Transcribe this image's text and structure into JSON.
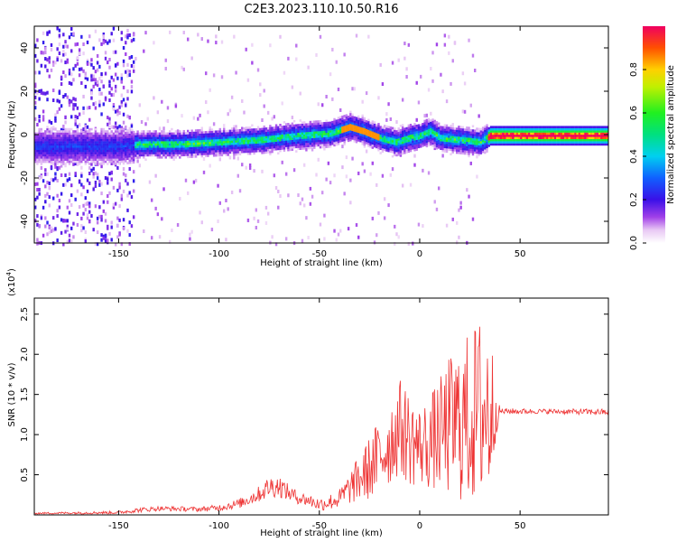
{
  "title": "C2E3.2023.110.10.50.R16",
  "colors": {
    "snr_line": "#ee3333",
    "axis": "#000000"
  },
  "chart_data": [
    {
      "type": "heatmap",
      "name_hint": "spectrogram",
      "xlabel": "Height of straight line (km)",
      "ylabel": "Frequency (Hz)",
      "xlim": [
        -192,
        94
      ],
      "ylim": [
        -50,
        50
      ],
      "x_ticks": [
        "-150",
        "-100",
        "-50",
        "0",
        "50"
      ],
      "y_ticks": [
        "40",
        "20",
        "0",
        "-20",
        "-40"
      ],
      "colorbar": {
        "label": "Normalized spectral amplitude",
        "range": [
          0.0,
          1.0
        ],
        "ticks": [
          "0.0",
          "0.2",
          "0.4",
          "0.6",
          "0.8"
        ],
        "colormap": "rainbow (white-violet-blue-cyan-green-yellow-red)"
      },
      "ridge_frequency_hz": {
        "x": [
          -150,
          -140,
          -120,
          -100,
          -80,
          -60,
          -45,
          -35,
          -28,
          -20,
          -12,
          -5,
          0,
          5,
          10,
          20,
          30,
          35,
          60,
          90
        ],
        "y": [
          -5,
          -4,
          -4,
          -3,
          -2,
          0,
          1,
          4,
          2,
          -1,
          -3,
          -1,
          0,
          2,
          -1,
          -2,
          -3,
          0,
          0,
          0
        ]
      }
    },
    {
      "type": "line",
      "name_hint": "snr",
      "xlabel": "Height of straight line (km)",
      "ylabel": "SNR (10 * v/v)",
      "y_multiplier": "(x10",
      "y_multiplier_exp": "4",
      "y_multiplier_close": ")",
      "xlim": [
        -192,
        94
      ],
      "ylim": [
        0.0,
        2.7
      ],
      "x_ticks": [
        "-150",
        "-100",
        "-50",
        "0",
        "50"
      ],
      "y_ticks": [
        "0.5",
        "1.0",
        "1.5",
        "2.0",
        "2.5"
      ],
      "envelope": {
        "x": [
          -192,
          -150,
          -140,
          -130,
          -110,
          -100,
          -90,
          -80,
          -75,
          -70,
          -65,
          -60,
          -55,
          -50,
          -45,
          -40,
          -35,
          -30,
          -25,
          -20,
          -15,
          -10,
          -5,
          0,
          5,
          10,
          15,
          20,
          25,
          30,
          35,
          38,
          40,
          60,
          94
        ],
        "y": [
          0.02,
          0.03,
          0.06,
          0.08,
          0.07,
          0.09,
          0.14,
          0.26,
          0.35,
          0.36,
          0.27,
          0.21,
          0.18,
          0.13,
          0.16,
          0.2,
          0.33,
          0.45,
          0.58,
          0.72,
          0.9,
          1.1,
          0.95,
          0.85,
          0.9,
          1.0,
          1.1,
          1.15,
          1.2,
          1.3,
          1.3,
          1.28,
          1.29,
          1.29,
          1.28
        ],
        "spread": [
          0.01,
          0.02,
          0.03,
          0.03,
          0.03,
          0.04,
          0.06,
          0.1,
          0.14,
          0.14,
          0.1,
          0.08,
          0.08,
          0.08,
          0.1,
          0.12,
          0.2,
          0.3,
          0.4,
          0.5,
          0.55,
          0.6,
          0.6,
          0.5,
          0.6,
          0.7,
          0.9,
          1.0,
          1.1,
          1.2,
          1.2,
          0.3,
          0.04,
          0.03,
          0.04
        ]
      }
    }
  ]
}
